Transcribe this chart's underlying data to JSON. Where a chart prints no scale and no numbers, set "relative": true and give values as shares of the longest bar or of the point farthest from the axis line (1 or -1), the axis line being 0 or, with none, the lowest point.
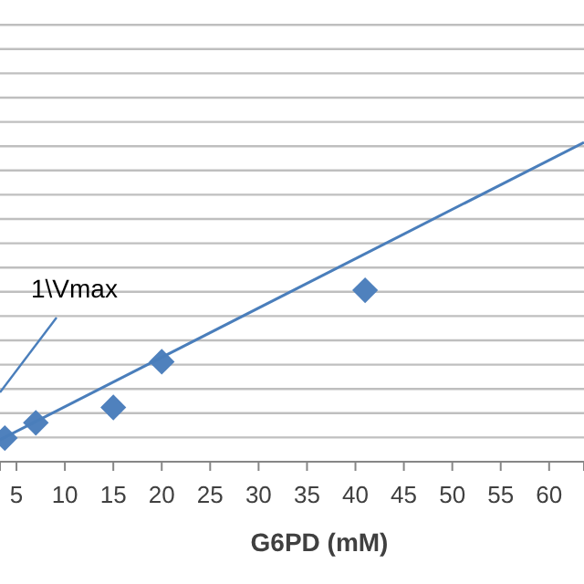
{
  "chart_data": {
    "type": "scatter",
    "xlabel": "G6PD (mM)",
    "relative": true,
    "xlim": [
      3.3,
      63.6
    ],
    "xticks": [
      5,
      10,
      15,
      20,
      25,
      30,
      35,
      40,
      45,
      50,
      55,
      60
    ],
    "grid": "y",
    "annotations": [
      "1\\Vmax"
    ],
    "series": [
      {
        "marker": "diamond",
        "color": "#4f81bd",
        "x": [
          3.8,
          7,
          15,
          20,
          41
        ],
        "values": [
          0.074,
          0.122,
          0.17,
          0.313,
          0.537
        ]
      },
      {
        "type": "line",
        "color": "#4a7ebb",
        "x": [
          3.3,
          63.6
        ],
        "values": [
          0.069,
          1
        ]
      }
    ]
  }
}
